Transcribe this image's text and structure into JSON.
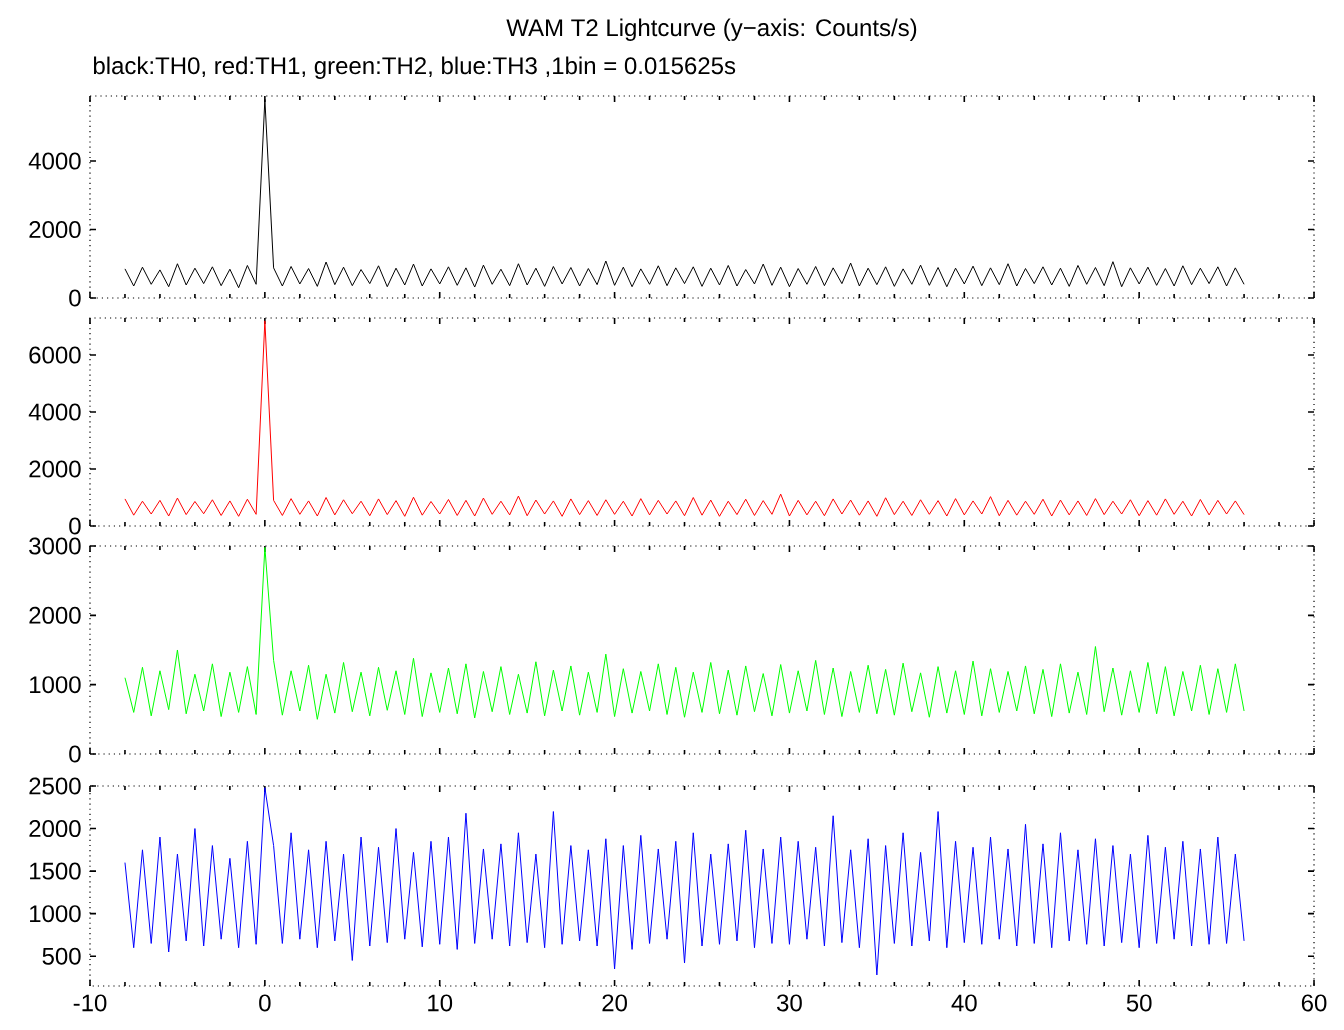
{
  "chart_data": [
    {
      "type": "line",
      "title": "WAM T2 Lightcurve (y−axis: Counts/s)",
      "subtitle": "black:TH0, red:TH1, green:TH2, blue:TH3 ,1bin = 0.015625s",
      "xlim": [
        -10,
        60
      ],
      "xticks": [
        -10,
        0,
        10,
        20,
        30,
        40,
        50,
        60
      ],
      "ylim": [
        0,
        5900
      ],
      "yticks": [
        0,
        2000,
        4000
      ],
      "tick_labels": "y",
      "x": [
        -8,
        -7.5,
        -7,
        -6.5,
        -6,
        -5.5,
        -5,
        -4.5,
        -4,
        -3.5,
        -3,
        -2.5,
        -2,
        -1.5,
        -1,
        -0.5,
        0,
        0.5,
        1,
        1.5,
        2,
        2.5,
        3,
        3.5,
        4,
        4.5,
        5,
        5.5,
        6,
        6.5,
        7,
        7.5,
        8,
        8.5,
        9,
        9.5,
        10,
        10.5,
        11,
        11.5,
        12,
        12.5,
        13,
        13.5,
        14,
        14.5,
        15,
        15.5,
        16,
        16.5,
        17,
        17.5,
        18,
        18.5,
        19,
        19.5,
        20,
        20.5,
        21,
        21.5,
        22,
        22.5,
        23,
        23.5,
        24,
        24.5,
        25,
        25.5,
        26,
        26.5,
        27,
        27.5,
        28,
        28.5,
        29,
        29.5,
        30,
        30.5,
        31,
        31.5,
        32,
        32.5,
        33,
        33.5,
        34,
        34.5,
        35,
        35.5,
        36,
        36.5,
        37,
        37.5,
        38,
        38.5,
        39,
        39.5,
        40,
        40.5,
        41,
        41.5,
        42,
        42.5,
        43,
        43.5,
        44,
        44.5,
        45,
        45.5,
        46,
        46.5,
        47,
        47.5,
        48,
        48.5,
        49,
        49.5,
        50,
        50.5,
        51,
        51.5,
        52,
        52.5,
        53,
        53.5,
        54,
        54.5,
        55,
        55.5,
        56
      ],
      "series": [
        {
          "color": "#000000",
          "values": [
            850,
            350,
            900,
            400,
            820,
            330,
            1000,
            380,
            870,
            420,
            910,
            360,
            840,
            300,
            950,
            400,
            5800,
            880,
            350,
            920,
            410,
            860,
            340,
            1050,
            390,
            900,
            360,
            830,
            420,
            940,
            330,
            870,
            380,
            990,
            350,
            850,
            410,
            910,
            370,
            880,
            320,
            960,
            400,
            840,
            360,
            1000,
            380,
            870,
            340,
            920,
            410,
            890,
            350,
            860,
            390,
            1080,
            370,
            900,
            330,
            850,
            400,
            940,
            360,
            880,
            420,
            910,
            340,
            870,
            380,
            950,
            350,
            830,
            410,
            990,
            370,
            900,
            330,
            860,
            400,
            920,
            360,
            880,
            420,
            1020,
            350,
            870,
            390,
            910,
            340,
            850,
            400,
            960,
            370,
            890,
            330,
            870,
            410,
            930,
            360,
            880,
            390,
            1000,
            350,
            860,
            420,
            910,
            380,
            870,
            340,
            950,
            400,
            890,
            360,
            1060,
            330,
            880,
            410,
            900,
            370,
            860,
            350,
            940,
            390,
            870,
            420,
            910,
            350,
            880,
            400
          ]
        }
      ]
    },
    {
      "type": "line",
      "xlim": [
        -10,
        60
      ],
      "xticks": [
        -10,
        0,
        10,
        20,
        30,
        40,
        50,
        60
      ],
      "ylim": [
        0,
        7300
      ],
      "yticks": [
        0,
        2000,
        4000,
        6000
      ],
      "tick_labels": "y",
      "x": [
        -8,
        -7.5,
        -7,
        -6.5,
        -6,
        -5.5,
        -5,
        -4.5,
        -4,
        -3.5,
        -3,
        -2.5,
        -2,
        -1.5,
        -1,
        -0.5,
        0,
        0.5,
        1,
        1.5,
        2,
        2.5,
        3,
        3.5,
        4,
        4.5,
        5,
        5.5,
        6,
        6.5,
        7,
        7.5,
        8,
        8.5,
        9,
        9.5,
        10,
        10.5,
        11,
        11.5,
        12,
        12.5,
        13,
        13.5,
        14,
        14.5,
        15,
        15.5,
        16,
        16.5,
        17,
        17.5,
        18,
        18.5,
        19,
        19.5,
        20,
        20.5,
        21,
        21.5,
        22,
        22.5,
        23,
        23.5,
        24,
        24.5,
        25,
        25.5,
        26,
        26.5,
        27,
        27.5,
        28,
        28.5,
        29,
        29.5,
        30,
        30.5,
        31,
        31.5,
        32,
        32.5,
        33,
        33.5,
        34,
        34.5,
        35,
        35.5,
        36,
        36.5,
        37,
        37.5,
        38,
        38.5,
        39,
        39.5,
        40,
        40.5,
        41,
        41.5,
        42,
        42.5,
        43,
        43.5,
        44,
        44.5,
        45,
        45.5,
        46,
        46.5,
        47,
        47.5,
        48,
        48.5,
        49,
        49.5,
        50,
        50.5,
        51,
        51.5,
        52,
        52.5,
        53,
        53.5,
        54,
        54.5,
        55,
        55.5,
        56
      ],
      "series": [
        {
          "color": "#ff0000",
          "values": [
            950,
            380,
            870,
            420,
            900,
            350,
            980,
            400,
            860,
            430,
            920,
            370,
            880,
            340,
            940,
            410,
            7200,
            900,
            370,
            960,
            410,
            880,
            350,
            1000,
            390,
            920,
            430,
            870,
            360,
            950,
            400,
            890,
            340,
            1010,
            380,
            860,
            420,
            930,
            370,
            900,
            350,
            980,
            410,
            870,
            390,
            1050,
            360,
            910,
            420,
            880,
            340,
            950,
            400,
            890,
            370,
            920,
            410,
            870,
            350,
            960,
            390,
            900,
            420,
            880,
            360,
            1000,
            380,
            910,
            340,
            870,
            400,
            940,
            370,
            890,
            410,
            1120,
            350,
            900,
            390,
            870,
            360,
            950,
            420,
            910,
            380,
            880,
            340,
            990,
            400,
            870,
            370,
            920,
            410,
            890,
            350,
            960,
            390,
            880,
            420,
            1030,
            360,
            900,
            380,
            870,
            410,
            940,
            350,
            910,
            390,
            880,
            370,
            960,
            400,
            870,
            420,
            920,
            360,
            890,
            380,
            950,
            410,
            870,
            350,
            930,
            390,
            900,
            420,
            880,
            400
          ]
        }
      ]
    },
    {
      "type": "line",
      "xlim": [
        -10,
        60
      ],
      "xticks": [
        -10,
        0,
        10,
        20,
        30,
        40,
        50,
        60
      ],
      "ylim": [
        0,
        3000
      ],
      "yticks": [
        0,
        1000,
        2000,
        3000
      ],
      "tick_labels": "y",
      "x": [
        -8,
        -7.5,
        -7,
        -6.5,
        -6,
        -5.5,
        -5,
        -4.5,
        -4,
        -3.5,
        -3,
        -2.5,
        -2,
        -1.5,
        -1,
        -0.5,
        0,
        0.5,
        1,
        1.5,
        2,
        2.5,
        3,
        3.5,
        4,
        4.5,
        5,
        5.5,
        6,
        6.5,
        7,
        7.5,
        8,
        8.5,
        9,
        9.5,
        10,
        10.5,
        11,
        11.5,
        12,
        12.5,
        13,
        13.5,
        14,
        14.5,
        15,
        15.5,
        16,
        16.5,
        17,
        17.5,
        18,
        18.5,
        19,
        19.5,
        20,
        20.5,
        21,
        21.5,
        22,
        22.5,
        23,
        23.5,
        24,
        24.5,
        25,
        25.5,
        26,
        26.5,
        27,
        27.5,
        28,
        28.5,
        29,
        29.5,
        30,
        30.5,
        31,
        31.5,
        32,
        32.5,
        33,
        33.5,
        34,
        34.5,
        35,
        35.5,
        36,
        36.5,
        37,
        37.5,
        38,
        38.5,
        39,
        39.5,
        40,
        40.5,
        41,
        41.5,
        42,
        42.5,
        43,
        43.5,
        44,
        44.5,
        45,
        45.5,
        46,
        46.5,
        47,
        47.5,
        48,
        48.5,
        49,
        49.5,
        50,
        50.5,
        51,
        51.5,
        52,
        52.5,
        53,
        53.5,
        54,
        54.5,
        55,
        55.5,
        56
      ],
      "series": [
        {
          "color": "#00ff00",
          "values": [
            1100,
            600,
            1250,
            550,
            1200,
            640,
            1500,
            580,
            1150,
            620,
            1300,
            540,
            1180,
            600,
            1260,
            570,
            2980,
            1350,
            560,
            1200,
            620,
            1280,
            500,
            1150,
            590,
            1320,
            610,
            1180,
            550,
            1250,
            630,
            1200,
            570,
            1380,
            540,
            1170,
            600,
            1240,
            580,
            1300,
            520,
            1190,
            610,
            1260,
            570,
            1150,
            590,
            1330,
            550,
            1210,
            620,
            1270,
            560,
            1180,
            600,
            1440,
            540,
            1230,
            590,
            1190,
            620,
            1300,
            570,
            1250,
            530,
            1180,
            600,
            1320,
            580,
            1210,
            560,
            1270,
            610,
            1160,
            550,
            1290,
            590,
            1200,
            620,
            1350,
            570,
            1240,
            540,
            1190,
            600,
            1280,
            580,
            1220,
            560,
            1310,
            610,
            1170,
            530,
            1260,
            590,
            1200,
            570,
            1340,
            550,
            1230,
            600,
            1190,
            620,
            1270,
            580,
            1220,
            540,
            1300,
            590,
            1180,
            570,
            1550,
            610,
            1240,
            560,
            1200,
            600,
            1320,
            580,
            1260,
            550,
            1190,
            620,
            1280,
            570,
            1230,
            600,
            1300,
            620
          ]
        }
      ]
    },
    {
      "type": "line",
      "xlim": [
        -10,
        60
      ],
      "xticks": [
        -10,
        0,
        10,
        20,
        30,
        40,
        50,
        60
      ],
      "ylim": [
        150,
        2500
      ],
      "yticks": [
        500,
        1000,
        1500,
        2000,
        2500
      ],
      "x": [
        -8,
        -7.5,
        -7,
        -6.5,
        -6,
        -5.5,
        -5,
        -4.5,
        -4,
        -3.5,
        -3,
        -2.5,
        -2,
        -1.5,
        -1,
        -0.5,
        0,
        0.5,
        1,
        1.5,
        2,
        2.5,
        3,
        3.5,
        4,
        4.5,
        5,
        5.5,
        6,
        6.5,
        7,
        7.5,
        8,
        8.5,
        9,
        9.5,
        10,
        10.5,
        11,
        11.5,
        12,
        12.5,
        13,
        13.5,
        14,
        14.5,
        15,
        15.5,
        16,
        16.5,
        17,
        17.5,
        18,
        18.5,
        19,
        19.5,
        20,
        20.5,
        21,
        21.5,
        22,
        22.5,
        23,
        23.5,
        24,
        24.5,
        25,
        25.5,
        26,
        26.5,
        27,
        27.5,
        28,
        28.5,
        29,
        29.5,
        30,
        30.5,
        31,
        31.5,
        32,
        32.5,
        33,
        33.5,
        34,
        34.5,
        35,
        35.5,
        36,
        36.5,
        37,
        37.5,
        38,
        38.5,
        39,
        39.5,
        40,
        40.5,
        41,
        41.5,
        42,
        42.5,
        43,
        43.5,
        44,
        44.5,
        45,
        45.5,
        46,
        46.5,
        47,
        47.5,
        48,
        48.5,
        49,
        49.5,
        50,
        50.5,
        51,
        51.5,
        52,
        52.5,
        53,
        53.5,
        54,
        54.5,
        55,
        55.5,
        56
      ],
      "series": [
        {
          "color": "#0000ff",
          "values": [
            1600,
            600,
            1750,
            650,
            1900,
            550,
            1700,
            680,
            2000,
            620,
            1800,
            700,
            1650,
            600,
            1850,
            640,
            2480,
            1800,
            650,
            1950,
            700,
            1750,
            600,
            1850,
            680,
            1700,
            450,
            1900,
            620,
            1780,
            660,
            2000,
            700,
            1720,
            610,
            1850,
            640,
            1900,
            580,
            2180,
            650,
            1760,
            700,
            1820,
            620,
            1950,
            660,
            1700,
            600,
            2200,
            640,
            1800,
            680,
            1750,
            620,
            1880,
            350,
            1800,
            580,
            1920,
            650,
            1760,
            700,
            1850,
            420,
            1950,
            620,
            1700,
            640,
            1820,
            680,
            1980,
            600,
            1760,
            650,
            1900,
            640,
            1850,
            700,
            1780,
            620,
            2150,
            660,
            1750,
            600,
            1880,
            280,
            1800,
            650,
            1950,
            620,
            1720,
            680,
            2200,
            600,
            1850,
            660,
            1780,
            640,
            1900,
            700,
            1760,
            620,
            2050,
            650,
            1820,
            600,
            1950,
            680,
            1750,
            640,
            1880,
            620,
            1800,
            660,
            1700,
            600,
            1920,
            650,
            1780,
            700,
            1850,
            620,
            1760,
            640,
            1900,
            650,
            1700,
            680
          ]
        }
      ]
    }
  ]
}
